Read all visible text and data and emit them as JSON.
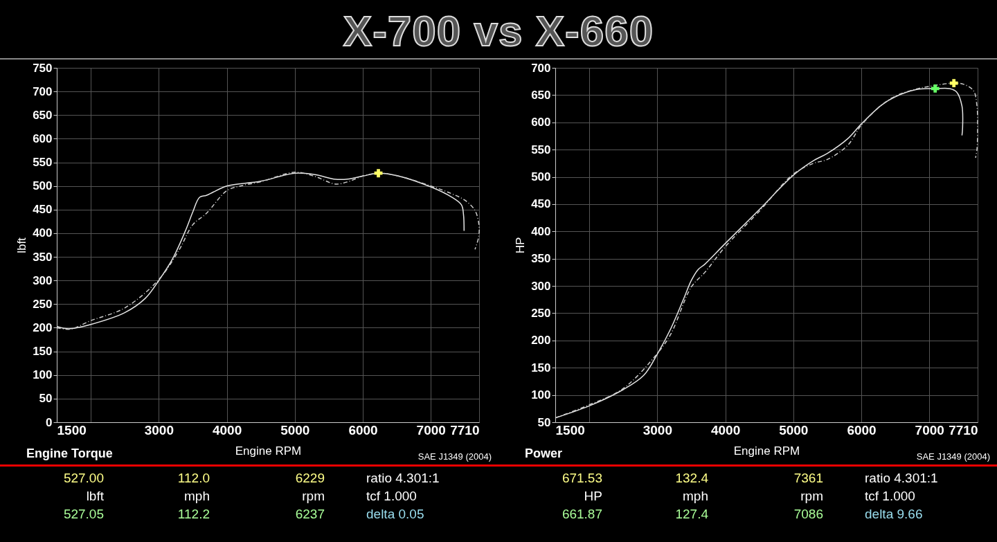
{
  "chart_data": [
    {
      "type": "line",
      "title": "X-700  vs  X-660",
      "xlabel": "Engine RPM",
      "ylabel": "lbft",
      "xlim": [
        1500,
        7710
      ],
      "xticks": [
        1500,
        {
          "value": 2000,
          "label": null
        },
        3000,
        4000,
        5000,
        6000,
        7000,
        7710
      ],
      "ylim": [
        0,
        750
      ],
      "yticks": [
        0,
        50,
        100,
        150,
        200,
        250,
        300,
        350,
        400,
        450,
        500,
        550,
        600,
        650,
        700,
        750
      ],
      "grid": true,
      "series": [
        {
          "color": "#e6e6e6",
          "line_style": "solid",
          "x": [
            1500,
            1600,
            1700,
            2000,
            2500,
            2800,
            3000,
            3200,
            3400,
            3500,
            3600,
            3700,
            3800,
            4000,
            4500,
            5000,
            5300,
            5600,
            5800,
            6000,
            6229,
            6500,
            7000,
            7300,
            7450,
            7480,
            7489
          ],
          "values": [
            203,
            199,
            198,
            207,
            232,
            262,
            300,
            345,
            408,
            445,
            476,
            480,
            487,
            500,
            510,
            527,
            524,
            514,
            515,
            521,
            527,
            522,
            498,
            477,
            460,
            440,
            405
          ]
        },
        {
          "color": "#cccccc",
          "line_style": "dashed",
          "x": [
            1500,
            1700,
            2000,
            2500,
            3000,
            3300,
            3500,
            3700,
            4000,
            4200,
            4500,
            5000,
            5300,
            5600,
            5800,
            6000,
            6237,
            6500,
            7000,
            7300,
            7500,
            7650,
            7710,
            7700,
            7650
          ],
          "values": [
            200,
            197,
            215,
            242,
            302,
            365,
            418,
            442,
            490,
            500,
            509,
            529,
            520,
            504,
            510,
            521,
            527,
            522,
            500,
            484,
            470,
            448,
            415,
            390,
            366
          ]
        },
        {
          "type": "scatter",
          "marker": "cross",
          "color": "#ffff66",
          "x": [
            6229
          ],
          "values": [
            527
          ]
        }
      ],
      "annotations": [
        "Engine Torque",
        "SAE J1349 (2004)",
        "527.00",
        "112.0",
        "6229",
        "ratio 4.301:1",
        "lbft",
        "mph",
        "rpm",
        "tcf 1.000",
        "527.05",
        "112.2",
        "6237",
        "delta 0.05"
      ]
    },
    {
      "type": "line",
      "xlabel": "Engine RPM",
      "ylabel": "HP",
      "xlim": [
        1500,
        7710
      ],
      "xticks": [
        1500,
        {
          "value": 2000,
          "label": null
        },
        3000,
        4000,
        5000,
        6000,
        7000,
        7710
      ],
      "ylim": [
        50,
        700
      ],
      "yticks": [
        50,
        100,
        150,
        200,
        250,
        300,
        350,
        400,
        450,
        500,
        550,
        600,
        650,
        700
      ],
      "grid": true,
      "series": [
        {
          "color": "#e6e6e6",
          "line_style": "solid",
          "x": [
            1500,
            2000,
            2500,
            2800,
            3000,
            3200,
            3400,
            3500,
            3600,
            3700,
            4000,
            4500,
            5000,
            5300,
            5500,
            5800,
            6000,
            6300,
            6500,
            6800,
            7000,
            7086,
            7300,
            7400,
            7480,
            7489,
            7480
          ],
          "values": [
            58,
            80,
            110,
            136,
            175,
            222,
            280,
            310,
            330,
            340,
            378,
            440,
            503,
            530,
            543,
            570,
            597,
            632,
            647,
            660,
            662,
            662,
            662,
            656,
            630,
            590,
            576
          ]
        },
        {
          "color": "#cccccc",
          "line_style": "dashed",
          "x": [
            1500,
            2000,
            2500,
            3000,
            3200,
            3500,
            3700,
            4000,
            4500,
            5000,
            5300,
            5500,
            5800,
            6000,
            6300,
            6500,
            6800,
            7000,
            7361,
            7500,
            7650,
            7700,
            7710,
            7700,
            7680
          ],
          "values": [
            58,
            82,
            112,
            176,
            212,
            298,
            325,
            372,
            437,
            505,
            525,
            532,
            558,
            595,
            632,
            648,
            661,
            666,
            672,
            670,
            658,
            630,
            590,
            550,
            535
          ]
        },
        {
          "type": "scatter",
          "marker": "cross",
          "color": "#ffff66",
          "x": [
            7361
          ],
          "values": [
            672
          ]
        },
        {
          "type": "scatter",
          "marker": "cross",
          "color": "#66ff66",
          "x": [
            7086
          ],
          "values": [
            662
          ]
        }
      ],
      "annotations": [
        "Power",
        "SAE J1349 (2004)",
        "671.53",
        "132.4",
        "7361",
        "ratio 4.301:1",
        "HP",
        "mph",
        "rpm",
        "tcf 1.000",
        "661.87",
        "127.4",
        "7086",
        "delta 9.66"
      ]
    }
  ]
}
